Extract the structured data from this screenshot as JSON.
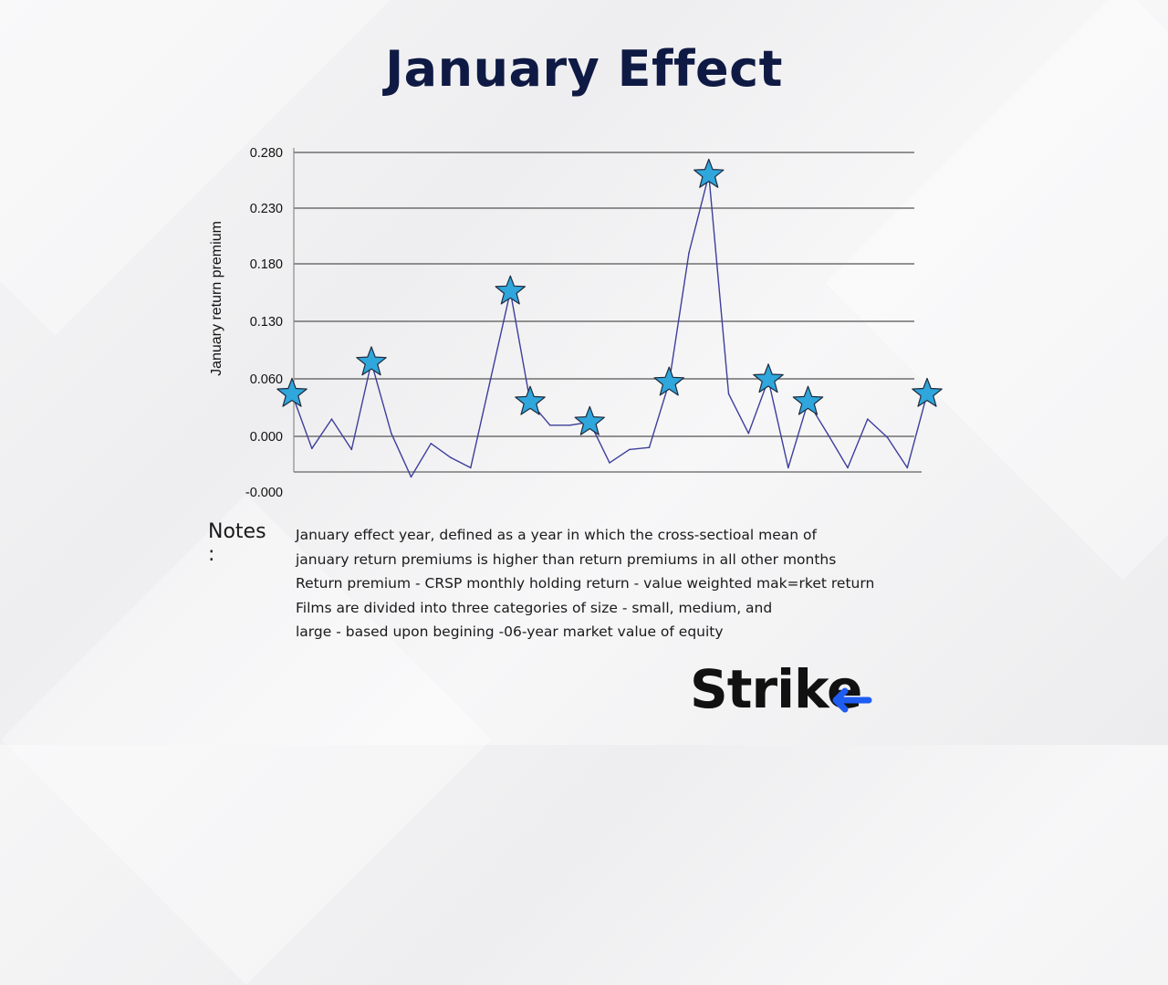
{
  "title": "January Effect",
  "chart_data": {
    "type": "line",
    "ylabel": "January return premium",
    "xlabel": "",
    "y_ticks": [
      "0.280",
      "0.230",
      "0.180",
      "0.130",
      "0.060",
      "0.000",
      "-0.000"
    ],
    "grid": true,
    "line_color": "#3d3f9b",
    "marker_color": "#2fa6dc",
    "series": [
      {
        "name": "January return premium",
        "values": [
          0.042,
          -0.012,
          0.017,
          -0.013,
          0.073,
          0.003,
          -0.04,
          -0.007,
          -0.021,
          -0.031,
          0.056,
          0.143,
          0.034,
          0.011,
          0.011,
          0.014,
          -0.026,
          -0.013,
          -0.011,
          0.053,
          0.181,
          0.258,
          0.042,
          0.003,
          0.056,
          -0.031,
          0.034,
          0.002,
          -0.031,
          0.017,
          -0.001,
          -0.031,
          0.042
        ]
      }
    ],
    "january_effect_year_indices": [
      0,
      4,
      11,
      12,
      15,
      19,
      21,
      24,
      26,
      32
    ]
  },
  "notes": {
    "label": "Notes :",
    "lines": [
      "January effect year, defined as a year in which the cross-sectioal mean of",
      "january return premiums is higher than return premiums in all other months",
      "Return premium - CRSP monthly holding return - value weighted mak=rket return",
      "Films are divided into three categories of size - small, medium, and",
      "large - based upon begining -06-year market value of equity"
    ]
  },
  "logo": {
    "text": "Strike",
    "accent_color": "#1f5cf0"
  }
}
